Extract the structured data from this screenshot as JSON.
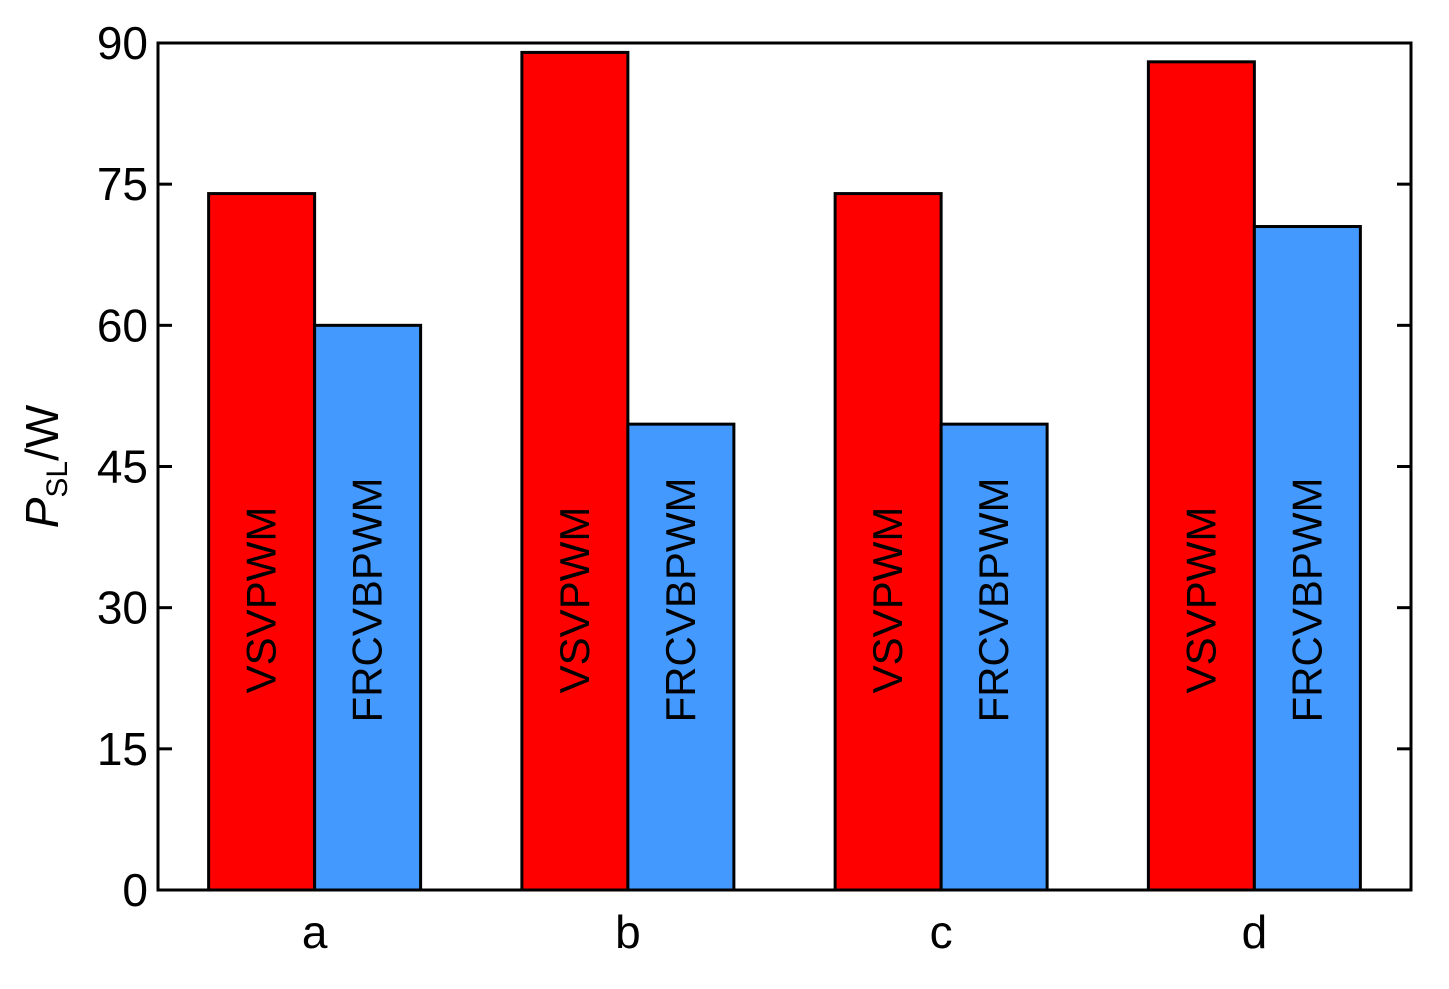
{
  "chart_data": {
    "type": "bar",
    "title": "",
    "xlabel": "",
    "ylabel_main": "P",
    "ylabel_sub": "SL",
    "ylabel_unit": "/W",
    "categories": [
      "a",
      "b",
      "c",
      "d"
    ],
    "ylim": [
      0,
      90
    ],
    "yticks": [
      0,
      15,
      30,
      45,
      60,
      75,
      90
    ],
    "grid": false,
    "legend": "none (series names printed inside bars)",
    "series": [
      {
        "name": "VSVPWM",
        "color": "#ff0000",
        "values": [
          74,
          89,
          74,
          88
        ]
      },
      {
        "name": "FRCVBPWM",
        "color": "#4499ff",
        "values": [
          60,
          49.5,
          49.5,
          70.5
        ]
      }
    ]
  }
}
